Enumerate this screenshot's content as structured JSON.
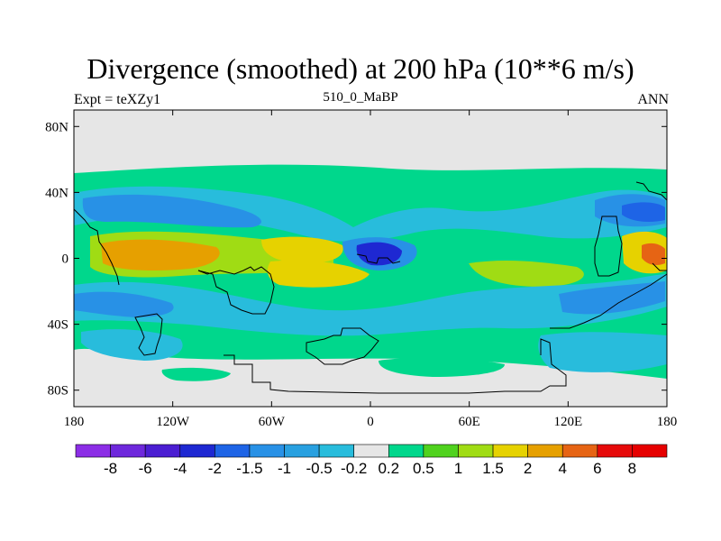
{
  "chart_data": {
    "type": "heatmap",
    "title": "Divergence (smoothed) at 200 hPa (10**6 m/s)",
    "left_label": "Expt = teXZy1",
    "center_label": "510_0_MaBP",
    "right_label": "ANN",
    "x_ticks": [
      {
        "value": -180,
        "label": "180"
      },
      {
        "value": -120,
        "label": "120W"
      },
      {
        "value": -60,
        "label": "60W"
      },
      {
        "value": 0,
        "label": "0"
      },
      {
        "value": 60,
        "label": "60E"
      },
      {
        "value": 120,
        "label": "120E"
      },
      {
        "value": 180,
        "label": "180"
      }
    ],
    "y_ticks": [
      {
        "value": 80,
        "label": "80N"
      },
      {
        "value": 40,
        "label": "40N"
      },
      {
        "value": 0,
        "label": "0"
      },
      {
        "value": -40,
        "label": "40S"
      },
      {
        "value": -80,
        "label": "80S"
      }
    ],
    "xlim": [
      -180,
      180
    ],
    "ylim": [
      -90,
      90
    ],
    "colorbar": {
      "labels": [
        "-8",
        "-6",
        "-4",
        "-2",
        "-1.5",
        "-1",
        "-0.5",
        "-0.2",
        "0.2",
        "0.5",
        "1",
        "1.5",
        "2",
        "4",
        "6",
        "8"
      ],
      "colors": [
        "#8c2ee6",
        "#6e28dc",
        "#4b1ed2",
        "#1e28d2",
        "#1e64e6",
        "#2891e6",
        "#28a0e0",
        "#28bcdc",
        "#e6e6e6",
        "#00d78c",
        "#50d21e",
        "#a0dc14",
        "#e6d200",
        "#e6a000",
        "#e66414",
        "#e60a0a",
        "#e60000"
      ]
    }
  }
}
